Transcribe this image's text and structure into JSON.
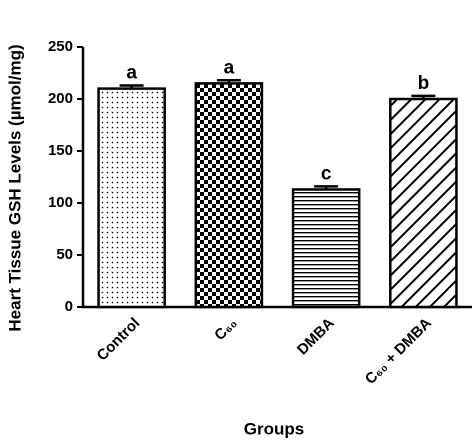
{
  "chart_data": {
    "type": "bar",
    "categories": [
      "Control",
      "C₆₀",
      "DMBA",
      "C₆₀ + DMBA"
    ],
    "values": [
      210,
      215,
      113,
      200
    ],
    "errors": [
      3,
      3,
      3,
      3
    ],
    "annotations": [
      "a",
      "a",
      "c",
      "b"
    ],
    "y_label": "Heart Tissue GSH Levels (µmol/mg)",
    "x_label": "Groups",
    "ylim": [
      0,
      250
    ],
    "yticks": [
      0,
      50,
      100,
      150,
      200,
      250
    ],
    "color": "#000000",
    "grid": false
  }
}
